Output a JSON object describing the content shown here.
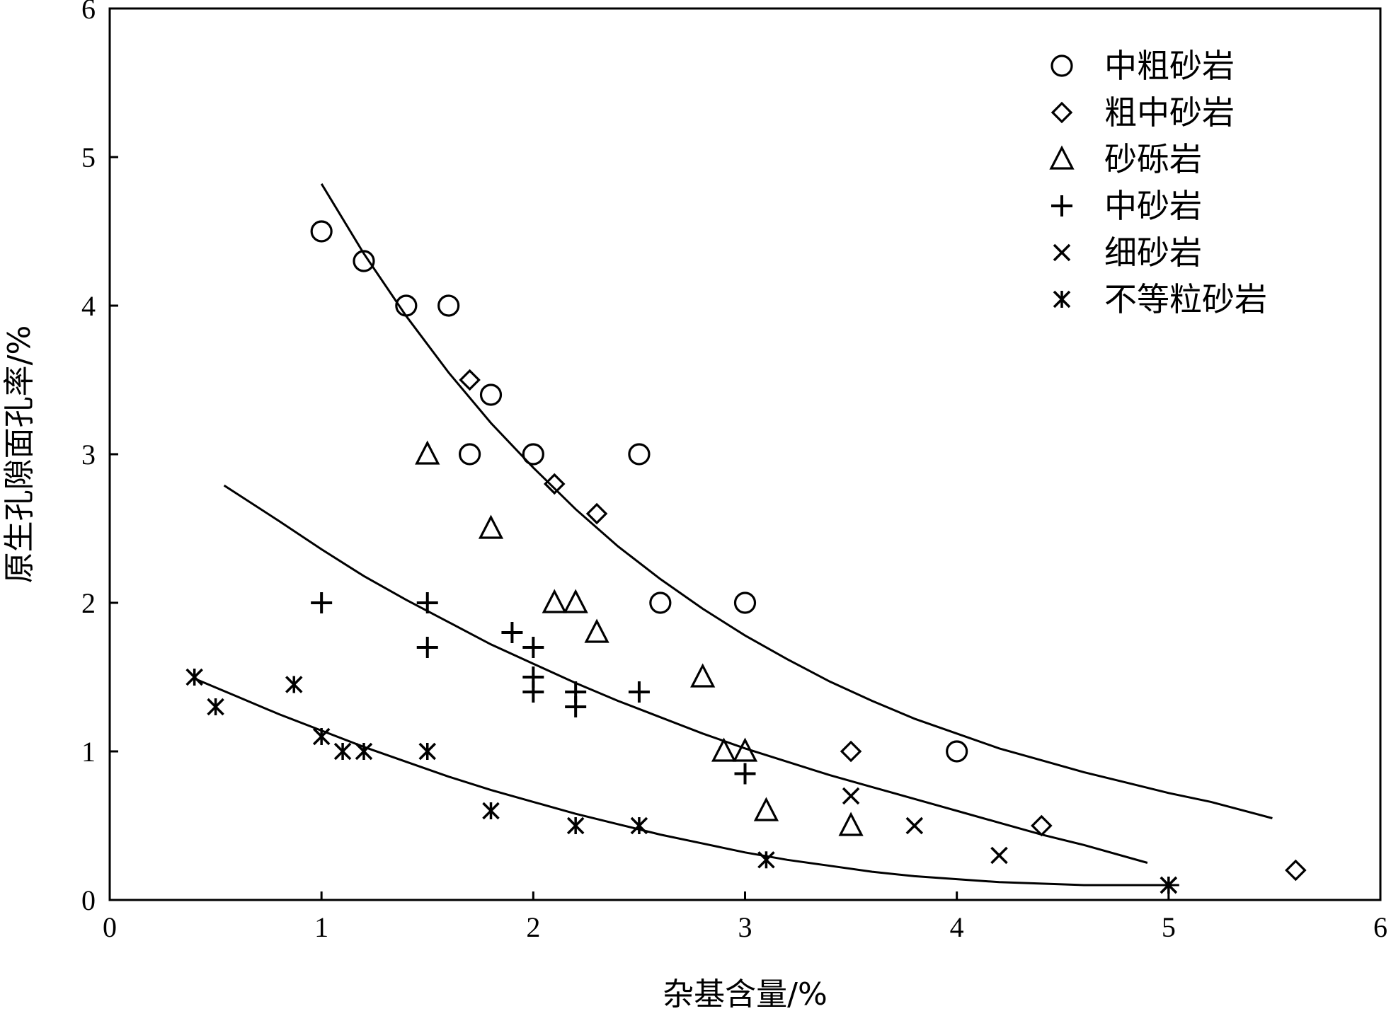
{
  "chart_data": {
    "type": "scatter",
    "title": "",
    "xlabel": "杂基含量/%",
    "ylabel": "原生孔隙面孔率/%",
    "xlim": [
      0,
      6
    ],
    "ylim": [
      0,
      6
    ],
    "x_ticks": [
      "0",
      "1",
      "2",
      "3",
      "4",
      "5",
      "6"
    ],
    "y_ticks": [
      "0",
      "1",
      "2",
      "3",
      "4",
      "5",
      "6"
    ],
    "grid": false,
    "legend_position": "top-right",
    "series": [
      {
        "name": "中粗砂岩",
        "marker": "circle",
        "points": [
          [
            1.0,
            4.5
          ],
          [
            1.2,
            4.3
          ],
          [
            1.4,
            4.0
          ],
          [
            1.6,
            4.0
          ],
          [
            1.8,
            3.4
          ],
          [
            1.7,
            3.0
          ],
          [
            2.0,
            3.0
          ],
          [
            2.5,
            3.0
          ],
          [
            2.6,
            2.0
          ],
          [
            3.0,
            2.0
          ],
          [
            4.0,
            1.0
          ]
        ]
      },
      {
        "name": "粗中砂岩",
        "marker": "diamond",
        "points": [
          [
            1.7,
            3.5
          ],
          [
            2.1,
            2.8
          ],
          [
            2.3,
            2.6
          ],
          [
            3.5,
            1.0
          ],
          [
            4.4,
            0.5
          ],
          [
            5.6,
            0.2
          ]
        ]
      },
      {
        "name": "砂砾岩",
        "marker": "triangle",
        "points": [
          [
            1.5,
            3.0
          ],
          [
            1.8,
            2.5
          ],
          [
            2.1,
            2.0
          ],
          [
            2.2,
            2.0
          ],
          [
            2.3,
            1.8
          ],
          [
            2.8,
            1.5
          ],
          [
            2.9,
            1.0
          ],
          [
            3.0,
            1.0
          ],
          [
            3.1,
            0.6
          ],
          [
            3.5,
            0.5
          ]
        ]
      },
      {
        "name": "中砂岩",
        "marker": "plus",
        "points": [
          [
            1.0,
            2.0
          ],
          [
            1.5,
            2.0
          ],
          [
            1.5,
            1.7
          ],
          [
            1.9,
            1.8
          ],
          [
            2.0,
            1.7
          ],
          [
            2.0,
            1.5
          ],
          [
            2.0,
            1.4
          ],
          [
            2.2,
            1.4
          ],
          [
            2.2,
            1.3
          ],
          [
            2.5,
            1.4
          ],
          [
            3.0,
            0.85
          ]
        ]
      },
      {
        "name": "细砂岩",
        "marker": "cross",
        "points": [
          [
            3.5,
            0.7
          ],
          [
            3.8,
            0.5
          ],
          [
            4.2,
            0.3
          ],
          [
            5.0,
            0.1
          ]
        ]
      },
      {
        "name": "不等粒砂岩",
        "marker": "asterisk",
        "points": [
          [
            0.4,
            1.5
          ],
          [
            0.5,
            1.3
          ],
          [
            0.87,
            1.45
          ],
          [
            1.0,
            1.1
          ],
          [
            1.1,
            1.0
          ],
          [
            1.2,
            1.0
          ],
          [
            1.5,
            1.0
          ],
          [
            1.8,
            0.6
          ],
          [
            2.2,
            0.5
          ],
          [
            2.5,
            0.5
          ],
          [
            3.1,
            0.27
          ],
          [
            5.0,
            0.1
          ]
        ]
      }
    ],
    "fit_curves": [
      {
        "points": [
          [
            1.0,
            4.82
          ],
          [
            1.2,
            4.35
          ],
          [
            1.4,
            3.93
          ],
          [
            1.6,
            3.55
          ],
          [
            1.8,
            3.21
          ],
          [
            2.0,
            2.91
          ],
          [
            2.2,
            2.63
          ],
          [
            2.4,
            2.38
          ],
          [
            2.6,
            2.16
          ],
          [
            2.8,
            1.96
          ],
          [
            3.0,
            1.78
          ],
          [
            3.2,
            1.62
          ],
          [
            3.4,
            1.47
          ],
          [
            3.6,
            1.34
          ],
          [
            3.8,
            1.22
          ],
          [
            4.0,
            1.12
          ],
          [
            4.2,
            1.02
          ],
          [
            4.4,
            0.94
          ],
          [
            4.6,
            0.86
          ],
          [
            4.8,
            0.79
          ],
          [
            5.0,
            0.72
          ],
          [
            5.2,
            0.66
          ],
          [
            5.49,
            0.55
          ]
        ]
      },
      {
        "points": [
          [
            0.54,
            2.79
          ],
          [
            0.8,
            2.55
          ],
          [
            1.0,
            2.36
          ],
          [
            1.2,
            2.18
          ],
          [
            1.4,
            2.02
          ],
          [
            1.6,
            1.87
          ],
          [
            1.8,
            1.72
          ],
          [
            2.0,
            1.59
          ],
          [
            2.2,
            1.46
          ],
          [
            2.4,
            1.34
          ],
          [
            2.6,
            1.23
          ],
          [
            2.8,
            1.12
          ],
          [
            3.0,
            1.02
          ],
          [
            3.2,
            0.93
          ],
          [
            3.4,
            0.84
          ],
          [
            3.6,
            0.76
          ],
          [
            3.8,
            0.68
          ],
          [
            4.0,
            0.6
          ],
          [
            4.2,
            0.52
          ],
          [
            4.4,
            0.44
          ],
          [
            4.6,
            0.37
          ],
          [
            4.9,
            0.25
          ]
        ]
      },
      {
        "points": [
          [
            0.4,
            1.49
          ],
          [
            0.6,
            1.37
          ],
          [
            0.8,
            1.25
          ],
          [
            1.0,
            1.14
          ],
          [
            1.2,
            1.03
          ],
          [
            1.4,
            0.93
          ],
          [
            1.6,
            0.83
          ],
          [
            1.8,
            0.74
          ],
          [
            2.0,
            0.66
          ],
          [
            2.2,
            0.58
          ],
          [
            2.4,
            0.51
          ],
          [
            2.6,
            0.44
          ],
          [
            2.8,
            0.38
          ],
          [
            3.0,
            0.32
          ],
          [
            3.2,
            0.27
          ],
          [
            3.4,
            0.23
          ],
          [
            3.6,
            0.19
          ],
          [
            3.8,
            0.16
          ],
          [
            4.0,
            0.14
          ],
          [
            4.2,
            0.12
          ],
          [
            4.4,
            0.11
          ],
          [
            4.6,
            0.1
          ],
          [
            5.0,
            0.1
          ],
          [
            5.05,
            0.1
          ]
        ]
      }
    ]
  }
}
